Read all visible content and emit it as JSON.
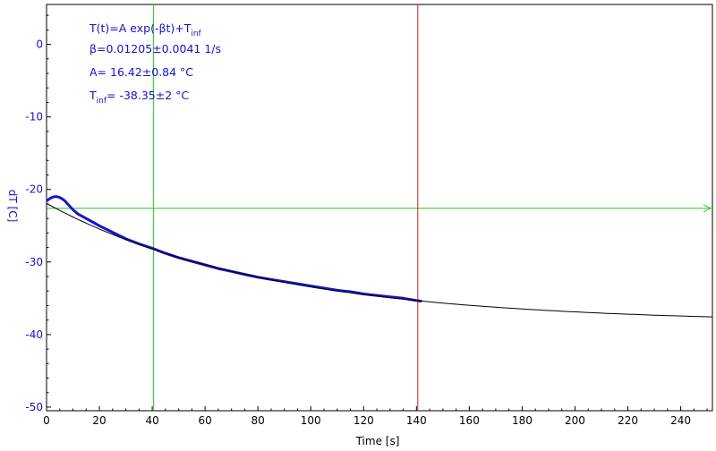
{
  "chart_data": {
    "type": "line",
    "xlabel": "Time [s]",
    "ylabel": "dT [C]",
    "xlim": [
      0,
      252
    ],
    "ylim": [
      -50.5,
      5.5
    ],
    "x_ticks": [
      0,
      20,
      40,
      60,
      80,
      100,
      120,
      140,
      160,
      180,
      200,
      220,
      240
    ],
    "y_ticks": [
      0,
      -10,
      -20,
      -30,
      -40,
      -50
    ],
    "grid": false,
    "annotation_lines": [
      {
        "text": "T(t)=A exp(-βt)+T",
        "sub": "inf"
      },
      {
        "text": "β=0.01205±0.0041 1/s",
        "sub": ""
      },
      {
        "text": "A= 16.42±0.84 °C",
        "sub": ""
      },
      {
        "text": "T",
        "sub": "inf",
        "tail": "= -38.35±2 °C"
      }
    ],
    "fit": {
      "A": 16.42,
      "beta": 0.01205,
      "T_inf": -38.35
    },
    "measured_series": {
      "x": [
        0,
        1,
        2,
        3,
        4,
        5,
        6,
        7,
        8,
        10,
        12,
        15,
        18,
        20,
        25,
        30,
        35,
        40,
        45,
        50,
        55,
        60,
        65,
        70,
        75,
        80,
        85,
        90,
        95,
        100,
        105,
        110,
        115,
        120,
        125,
        130,
        135,
        140,
        142
      ],
      "y": [
        -21.6,
        -21.3,
        -21.1,
        -21.0,
        -21.0,
        -21.1,
        -21.3,
        -21.6,
        -22.0,
        -22.8,
        -23.4,
        -24.0,
        -24.6,
        -25.0,
        -25.9,
        -26.8,
        -27.5,
        -28.1,
        -28.8,
        -29.4,
        -29.9,
        -30.4,
        -30.9,
        -31.3,
        -31.7,
        -32.1,
        -32.4,
        -32.7,
        -33.0,
        -33.3,
        -33.6,
        -33.9,
        -34.1,
        -34.4,
        -34.6,
        -34.8,
        -35.0,
        -35.3,
        -35.4
      ]
    },
    "green_cursor": {
      "x": 40.5,
      "y": -22.6
    },
    "red_cursor": {
      "x": 140.5
    },
    "colors": {
      "measured": "#1515c8",
      "fit": "#000000",
      "green_cursor": "#22cc22",
      "red_cursor": "#c81e1e",
      "axis_text": "#000000",
      "y_tick_text": "#1515c8"
    }
  }
}
